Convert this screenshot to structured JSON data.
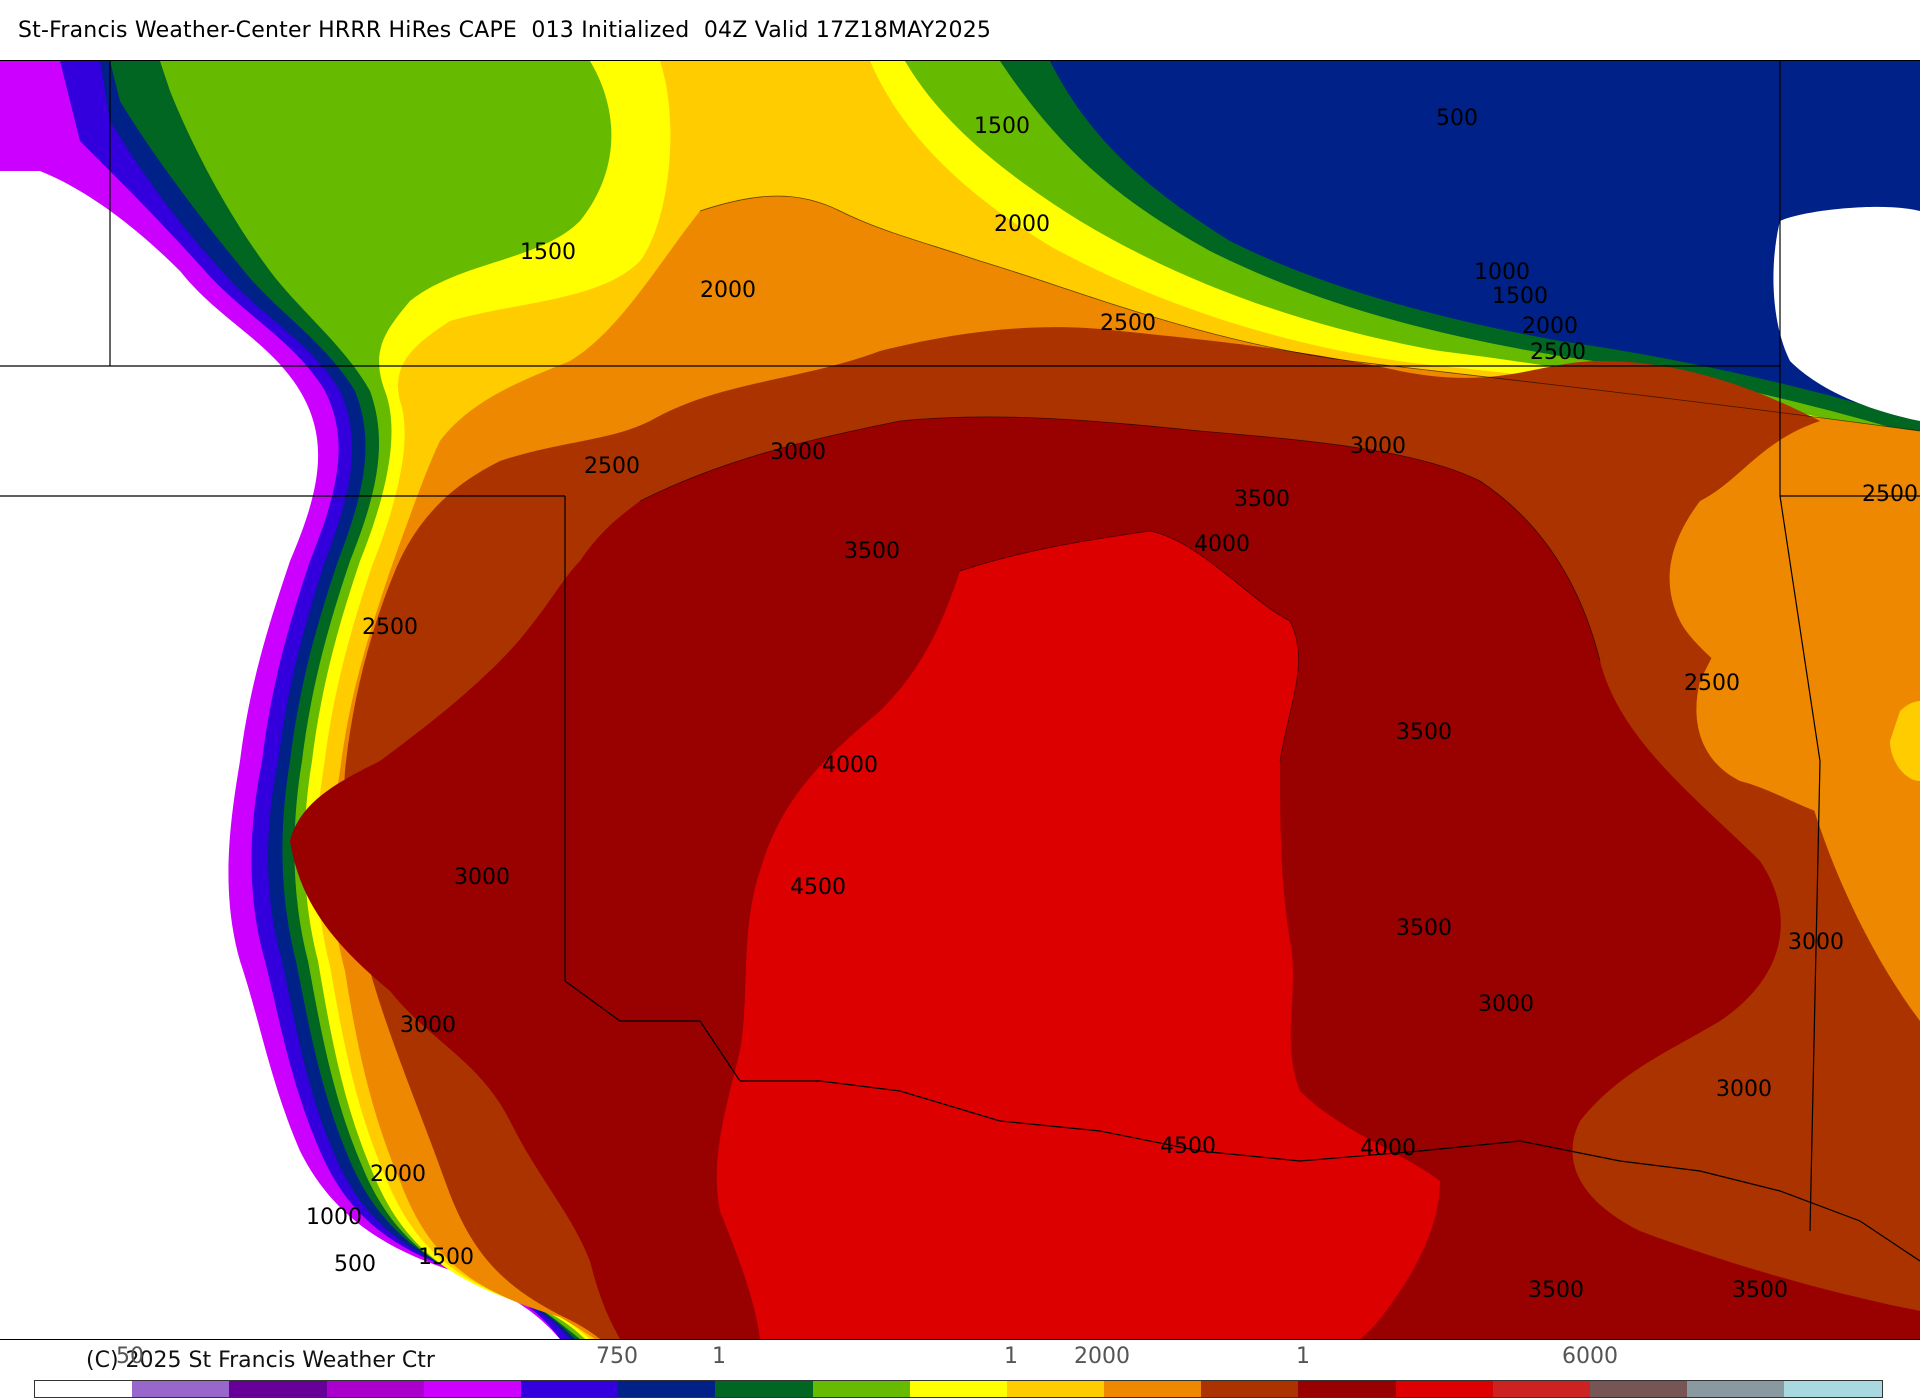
{
  "title": "St-Francis Weather-Center HRRR HiRes CAPE  013 Initialized  04Z Valid 17Z18MAY2025",
  "footer": {
    "copyright": "(C) 2025 St Francis Weather Ctr",
    "tick_labels": [
      "50",
      "750",
      "1",
      "1",
      "2000",
      "1",
      "6000"
    ]
  },
  "colorbar": [
    "#ffffff",
    "#9966cc",
    "#660099",
    "#aa00cc",
    "#cc00ff",
    "#3300dd",
    "#002288",
    "#006622",
    "#66bb00",
    "#ffff00",
    "#ffcc00",
    "#ee8800",
    "#aa3300",
    "#990000",
    "#dd0000",
    "#cc2222",
    "#775555",
    "#8899a0",
    "#a8d8e0"
  ],
  "map": {
    "contour_labels": [
      "500",
      "1500",
      "2000",
      "1500",
      "2000",
      "2500",
      "1000",
      "1500",
      "2000",
      "2500",
      "2500",
      "3000",
      "3000",
      "3500",
      "3500",
      "4000",
      "2500",
      "2500",
      "4000",
      "3500",
      "3000",
      "4500",
      "3000",
      "3500",
      "3000",
      "3000",
      "2500",
      "3000",
      "2000",
      "4500",
      "4000",
      "1000",
      "1500",
      "500",
      "3500",
      "3500"
    ]
  }
}
